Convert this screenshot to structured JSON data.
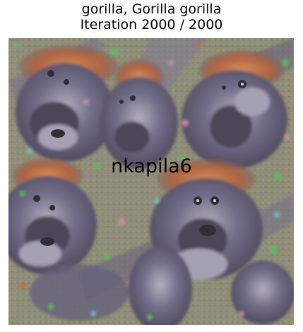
{
  "figure": {
    "title_line1": "gorilla, Gorilla gorilla",
    "title_line2": "Iteration 2000 / 2000",
    "watermark": "nkapila6"
  },
  "image": {
    "description_icon": "deepdream-visualization-image",
    "palette": {
      "background": "#8f8f78",
      "fur_dark": "#3f3a52",
      "fur_mid": "#6e6a8c",
      "fur_light": "#a7a3bd",
      "hair_orange": "#c56a3c",
      "accent_green": "#4ecb5a",
      "accent_pink": "#d88fb0",
      "accent_cyan": "#6fc9d6"
    }
  }
}
